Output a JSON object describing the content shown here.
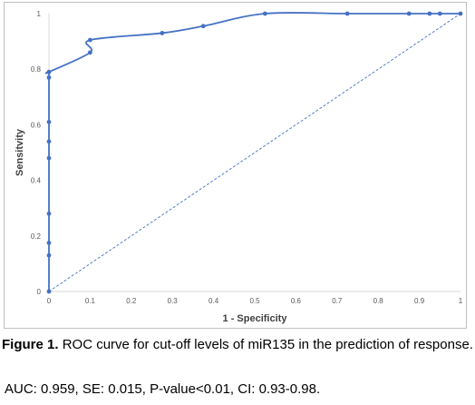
{
  "figure": {
    "label": "Figure 1.",
    "caption": "ROC curve for cut-off levels of miR135 in the prediction of response.",
    "stats": "AUC: 0.959, SE: 0.015, P-value<0.01, CI: 0.93-0.98."
  },
  "chart_data": {
    "type": "line",
    "xlabel": "1 - Specificity",
    "ylabel": "Sensitvity",
    "xlim": [
      0,
      1
    ],
    "ylim": [
      0,
      1
    ],
    "x_ticks": [
      "0",
      "0.1",
      "0.2",
      "0.3",
      "0.4",
      "0.5",
      "0.6",
      "0.7",
      "0.8",
      "0.9",
      "1"
    ],
    "y_ticks": [
      "0",
      "0.2",
      "0.4",
      "0.6",
      "0.8",
      "1"
    ],
    "grid": false,
    "legend": "none",
    "series": [
      {
        "type": "line",
        "color": "#4472c4",
        "markers": true,
        "smooth": true,
        "x": [
          0,
          0,
          0,
          0,
          0,
          0,
          0,
          0,
          0,
          0,
          0.1,
          0.1,
          0.275,
          0.375,
          0.525,
          0.725,
          0.875,
          0.925,
          0.95,
          1
        ],
        "y": [
          0,
          0.13,
          0.175,
          0.28,
          0.48,
          0.54,
          0.61,
          0.77,
          0.79,
          0.79,
          0.86,
          0.905,
          0.93,
          0.955,
          1,
          1,
          1,
          1,
          1,
          1
        ]
      },
      {
        "type": "line",
        "color": "#4472c4",
        "dashed": true,
        "markers": false,
        "x": [
          0,
          1
        ],
        "y": [
          0,
          1
        ]
      }
    ]
  }
}
